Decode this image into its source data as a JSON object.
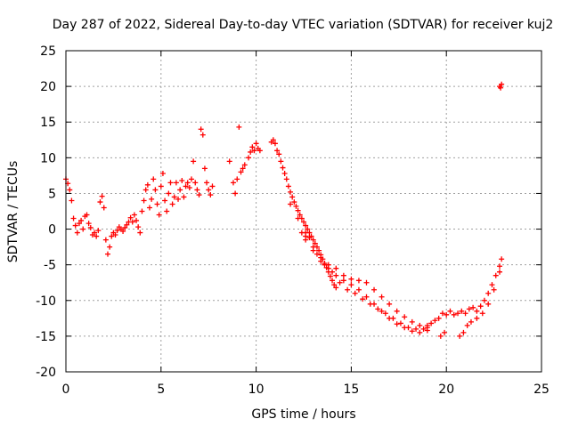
{
  "chart_data": {
    "type": "scatter",
    "title": "Day 287 of 2022, Sidereal Day-to-day VTEC variation (SDTVAR) for receiver kuj2",
    "xlabel": "GPS time / hours",
    "ylabel": "SDTVAR / TECUs",
    "xlim": [
      0,
      25
    ],
    "ylim": [
      -20,
      25
    ],
    "xticks": [
      "0",
      "5",
      "10",
      "15",
      "20",
      "25"
    ],
    "yticks": [
      "-20",
      "-15",
      "-10",
      "-5",
      "0",
      "5",
      "10",
      "15",
      "20",
      "25"
    ],
    "grid": true,
    "marker": "+",
    "color": "#ff0000",
    "series": [
      {
        "name": "kuj2",
        "points": [
          [
            0.0,
            7.0
          ],
          [
            0.1,
            6.4
          ],
          [
            0.2,
            5.5
          ],
          [
            0.3,
            4.0
          ],
          [
            0.4,
            1.5
          ],
          [
            0.5,
            0.5
          ],
          [
            0.6,
            -0.5
          ],
          [
            0.7,
            0.8
          ],
          [
            0.8,
            1.2
          ],
          [
            0.9,
            0.0
          ],
          [
            1.0,
            1.8
          ],
          [
            1.1,
            2.0
          ],
          [
            1.2,
            0.8
          ],
          [
            1.3,
            0.2
          ],
          [
            1.4,
            -0.8
          ],
          [
            1.5,
            -0.5
          ],
          [
            1.6,
            -1.0
          ],
          [
            1.7,
            -0.2
          ],
          [
            1.8,
            3.8
          ],
          [
            1.9,
            4.6
          ],
          [
            2.0,
            3.0
          ],
          [
            2.1,
            -1.5
          ],
          [
            2.2,
            -3.5
          ],
          [
            2.3,
            -2.5
          ],
          [
            2.4,
            -1.0
          ],
          [
            2.5,
            -0.5
          ],
          [
            2.6,
            -0.8
          ],
          [
            2.7,
            -0.2
          ],
          [
            2.8,
            0.3
          ],
          [
            2.9,
            0.0
          ],
          [
            3.0,
            -0.3
          ],
          [
            3.1,
            0.2
          ],
          [
            3.2,
            0.6
          ],
          [
            3.3,
            1.0
          ],
          [
            3.4,
            1.6
          ],
          [
            3.5,
            1.0
          ],
          [
            3.6,
            2.0
          ],
          [
            3.7,
            1.2
          ],
          [
            3.8,
            0.3
          ],
          [
            3.9,
            -0.5
          ],
          [
            4.0,
            2.5
          ],
          [
            4.1,
            4.0
          ],
          [
            4.2,
            5.5
          ],
          [
            4.3,
            6.2
          ],
          [
            4.4,
            3.0
          ],
          [
            4.5,
            4.2
          ],
          [
            4.6,
            7.0
          ],
          [
            4.7,
            5.5
          ],
          [
            4.8,
            3.5
          ],
          [
            4.9,
            2.0
          ],
          [
            5.0,
            6.0
          ],
          [
            5.1,
            7.8
          ],
          [
            5.2,
            4.0
          ],
          [
            5.3,
            2.5
          ],
          [
            5.4,
            5.0
          ],
          [
            5.5,
            6.5
          ],
          [
            5.6,
            3.5
          ],
          [
            5.7,
            4.5
          ],
          [
            5.8,
            6.5
          ],
          [
            5.9,
            4.2
          ],
          [
            6.0,
            5.5
          ],
          [
            6.1,
            6.8
          ],
          [
            6.2,
            4.5
          ],
          [
            6.3,
            6.0
          ],
          [
            6.4,
            6.5
          ],
          [
            6.5,
            5.8
          ],
          [
            6.6,
            7.0
          ],
          [
            6.7,
            9.5
          ],
          [
            6.8,
            6.5
          ],
          [
            6.9,
            5.5
          ],
          [
            7.0,
            4.8
          ],
          [
            7.1,
            14.0
          ],
          [
            7.2,
            13.2
          ],
          [
            7.3,
            8.5
          ],
          [
            7.4,
            6.5
          ],
          [
            7.5,
            5.5
          ],
          [
            7.6,
            4.8
          ],
          [
            7.7,
            6.0
          ],
          [
            8.6,
            9.5
          ],
          [
            8.8,
            6.5
          ],
          [
            8.9,
            5.0
          ],
          [
            9.0,
            7.0
          ],
          [
            9.1,
            14.3
          ],
          [
            9.2,
            8.0
          ],
          [
            9.3,
            8.5
          ],
          [
            9.4,
            9.0
          ],
          [
            9.6,
            10.0
          ],
          [
            9.7,
            10.8
          ],
          [
            9.8,
            11.5
          ],
          [
            9.9,
            11.0
          ],
          [
            10.0,
            12.0
          ],
          [
            10.1,
            11.3
          ],
          [
            10.2,
            11.0
          ],
          [
            10.8,
            12.2
          ],
          [
            10.9,
            12.5
          ],
          [
            11.0,
            12.0
          ],
          [
            11.1,
            11.0
          ],
          [
            11.2,
            10.5
          ],
          [
            11.3,
            9.5
          ],
          [
            11.4,
            8.6
          ],
          [
            11.5,
            7.8
          ],
          [
            11.6,
            7.0
          ],
          [
            11.7,
            6.0
          ],
          [
            11.8,
            5.2
          ],
          [
            11.9,
            4.5
          ],
          [
            12.0,
            3.8
          ],
          [
            12.1,
            3.2
          ],
          [
            12.2,
            2.6
          ],
          [
            12.3,
            2.0
          ],
          [
            12.4,
            1.5
          ],
          [
            12.5,
            1.0
          ],
          [
            12.6,
            0.5
          ],
          [
            12.7,
            0.0
          ],
          [
            12.8,
            -0.5
          ],
          [
            12.9,
            -1.0
          ],
          [
            13.0,
            -1.5
          ],
          [
            13.1,
            -2.0
          ],
          [
            13.2,
            -2.5
          ],
          [
            13.3,
            -3.0
          ],
          [
            13.4,
            -3.6
          ],
          [
            13.5,
            -4.2
          ],
          [
            13.6,
            -4.8
          ],
          [
            13.7,
            -5.4
          ],
          [
            13.8,
            -6.0
          ],
          [
            13.9,
            -6.6
          ],
          [
            14.0,
            -7.2
          ],
          [
            14.1,
            -7.8
          ],
          [
            14.2,
            -8.2
          ],
          [
            11.8,
            3.5
          ],
          [
            12.2,
            1.5
          ],
          [
            12.6,
            -0.5
          ],
          [
            12.8,
            -1.2
          ],
          [
            13.0,
            -2.5
          ],
          [
            13.4,
            -4.5
          ],
          [
            13.8,
            -5.5
          ],
          [
            14.2,
            -6.5
          ],
          [
            14.6,
            -7.2
          ],
          [
            15.0,
            -7.8
          ],
          [
            15.4,
            -8.5
          ],
          [
            15.8,
            -9.5
          ],
          [
            16.2,
            -10.5
          ],
          [
            16.6,
            -11.5
          ],
          [
            17.0,
            -12.5
          ],
          [
            17.4,
            -13.3
          ],
          [
            17.8,
            -13.8
          ],
          [
            18.2,
            -14.3
          ],
          [
            18.6,
            -14.5
          ],
          [
            19.0,
            -14.2
          ],
          [
            12.6,
            -1.0
          ],
          [
            13.0,
            -3.0
          ],
          [
            13.4,
            -4.0
          ],
          [
            13.8,
            -5.0
          ],
          [
            14.2,
            -5.5
          ],
          [
            14.6,
            -6.5
          ],
          [
            15.0,
            -7.0
          ],
          [
            15.4,
            -7.2
          ],
          [
            15.8,
            -7.5
          ],
          [
            16.2,
            -8.5
          ],
          [
            16.6,
            -9.5
          ],
          [
            17.0,
            -10.5
          ],
          [
            17.4,
            -11.5
          ],
          [
            17.8,
            -12.3
          ],
          [
            18.2,
            -13.0
          ],
          [
            18.6,
            -13.5
          ],
          [
            19.0,
            -13.8
          ],
          [
            12.4,
            -0.5
          ],
          [
            12.6,
            -1.5
          ],
          [
            13.2,
            -3.5
          ],
          [
            13.6,
            -5.0
          ],
          [
            14.0,
            -6.0
          ],
          [
            14.4,
            -7.5
          ],
          [
            14.8,
            -8.5
          ],
          [
            15.2,
            -9.0
          ],
          [
            15.6,
            -9.8
          ],
          [
            16.0,
            -10.5
          ],
          [
            16.4,
            -11.2
          ],
          [
            16.8,
            -11.8
          ],
          [
            17.2,
            -12.5
          ],
          [
            17.6,
            -13.2
          ],
          [
            18.0,
            -13.8
          ],
          [
            18.4,
            -14.0
          ],
          [
            18.8,
            -14.0
          ],
          [
            19.0,
            -13.5
          ],
          [
            19.2,
            -13.2
          ],
          [
            19.4,
            -12.8
          ],
          [
            19.6,
            -12.5
          ],
          [
            19.8,
            -11.8
          ],
          [
            20.0,
            -12.0
          ],
          [
            20.2,
            -11.5
          ],
          [
            20.4,
            -12.0
          ],
          [
            20.6,
            -11.8
          ],
          [
            20.8,
            -11.5
          ],
          [
            21.0,
            -11.8
          ],
          [
            21.2,
            -11.2
          ],
          [
            21.4,
            -11.0
          ],
          [
            21.6,
            -11.5
          ],
          [
            21.8,
            -10.8
          ],
          [
            22.0,
            -10.0
          ],
          [
            22.2,
            -9.0
          ],
          [
            22.4,
            -7.8
          ],
          [
            22.6,
            -6.5
          ],
          [
            22.8,
            -5.2
          ],
          [
            22.9,
            -4.2
          ],
          [
            19.7,
            -15.0
          ],
          [
            19.9,
            -14.5
          ],
          [
            20.7,
            -15.0
          ],
          [
            20.9,
            -14.5
          ],
          [
            21.1,
            -13.5
          ],
          [
            21.3,
            -13.0
          ],
          [
            21.6,
            -12.5
          ],
          [
            21.9,
            -11.8
          ],
          [
            22.2,
            -10.5
          ],
          [
            22.5,
            -8.5
          ],
          [
            22.8,
            -6.0
          ],
          [
            22.8,
            20.0
          ],
          [
            22.9,
            20.3
          ],
          [
            22.85,
            19.8
          ]
        ]
      }
    ]
  }
}
